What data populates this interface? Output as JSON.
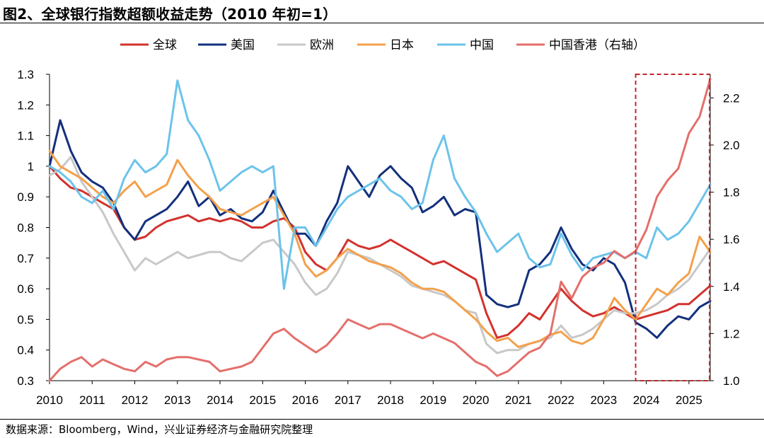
{
  "figure": {
    "title": "图2、全球银行指数超额收益走势（2010 年初=1）",
    "source": "数据来源：Bloomberg，Wind，兴业证券经济与金融研究院整理"
  },
  "chart_data": {
    "type": "line",
    "title": "图2、全球银行指数超额收益走势（2010 年初=1）",
    "xlabel": "",
    "ylabel": "",
    "x_range": [
      2010.0,
      2025.5
    ],
    "x_ticks": [
      "2010",
      "2011",
      "2012",
      "2013",
      "2014",
      "2015",
      "2016",
      "2017",
      "2018",
      "2019",
      "2020",
      "2021",
      "2022",
      "2023",
      "2024",
      "2025"
    ],
    "y_left": {
      "range": [
        0.3,
        1.3
      ],
      "ticks": [
        "1.3",
        "1.2",
        "1.1",
        "1",
        "0.9",
        "0.8",
        "0.7",
        "0.6",
        "0.5",
        "0.4",
        "0.3"
      ]
    },
    "y_right": {
      "range": [
        1.0,
        2.3
      ],
      "ticks": [
        "2.2",
        "2.0",
        "1.8",
        "1.6",
        "1.4",
        "1.2",
        "1.0"
      ]
    },
    "legend_position": "top-center",
    "highlight_box": {
      "x_from": 2023.75,
      "x_to": 2025.5,
      "style": "dashed",
      "color": "#C0282B"
    },
    "series": [
      {
        "name": "全球",
        "color": "#D2322D",
        "axis": "left",
        "x": [
          2010.0,
          2010.25,
          2010.5,
          2010.75,
          2011.0,
          2011.25,
          2011.5,
          2011.75,
          2012.0,
          2012.25,
          2012.5,
          2012.75,
          2013.0,
          2013.25,
          2013.5,
          2013.75,
          2014.0,
          2014.25,
          2014.5,
          2014.75,
          2015.0,
          2015.25,
          2015.5,
          2015.75,
          2016.0,
          2016.25,
          2016.5,
          2016.75,
          2017.0,
          2017.25,
          2017.5,
          2017.75,
          2018.0,
          2018.25,
          2018.5,
          2018.75,
          2019.0,
          2019.25,
          2019.5,
          2019.75,
          2020.0,
          2020.25,
          2020.5,
          2020.75,
          2021.0,
          2021.25,
          2021.5,
          2021.75,
          2022.0,
          2022.25,
          2022.5,
          2022.75,
          2023.0,
          2023.25,
          2023.5,
          2023.75,
          2024.0,
          2024.25,
          2024.5,
          2024.75,
          2025.0,
          2025.25,
          2025.5
        ],
        "values": [
          1.0,
          0.96,
          0.93,
          0.92,
          0.9,
          0.88,
          0.86,
          0.8,
          0.76,
          0.77,
          0.8,
          0.82,
          0.83,
          0.84,
          0.82,
          0.83,
          0.82,
          0.83,
          0.82,
          0.8,
          0.8,
          0.82,
          0.83,
          0.8,
          0.72,
          0.68,
          0.66,
          0.7,
          0.76,
          0.74,
          0.73,
          0.74,
          0.76,
          0.74,
          0.72,
          0.7,
          0.68,
          0.69,
          0.67,
          0.65,
          0.63,
          0.52,
          0.44,
          0.45,
          0.48,
          0.52,
          0.5,
          0.55,
          0.6,
          0.56,
          0.53,
          0.51,
          0.52,
          0.54,
          0.52,
          0.5,
          0.51,
          0.52,
          0.53,
          0.55,
          0.55,
          0.58,
          0.61
        ]
      },
      {
        "name": "美国",
        "color": "#13307D",
        "axis": "left",
        "x": [
          2010.0,
          2010.25,
          2010.5,
          2010.75,
          2011.0,
          2011.25,
          2011.5,
          2011.75,
          2012.0,
          2012.25,
          2012.5,
          2012.75,
          2013.0,
          2013.25,
          2013.5,
          2013.75,
          2014.0,
          2014.25,
          2014.5,
          2014.75,
          2015.0,
          2015.25,
          2015.5,
          2015.75,
          2016.0,
          2016.25,
          2016.5,
          2016.75,
          2017.0,
          2017.25,
          2017.5,
          2017.75,
          2018.0,
          2018.25,
          2018.5,
          2018.75,
          2019.0,
          2019.25,
          2019.5,
          2019.75,
          2020.0,
          2020.25,
          2020.5,
          2020.75,
          2021.0,
          2021.25,
          2021.5,
          2021.75,
          2022.0,
          2022.25,
          2022.5,
          2022.75,
          2023.0,
          2023.25,
          2023.5,
          2023.75,
          2024.0,
          2024.25,
          2024.5,
          2024.75,
          2025.0,
          2025.25,
          2025.5
        ],
        "values": [
          1.0,
          1.15,
          1.05,
          0.98,
          0.95,
          0.93,
          0.88,
          0.8,
          0.76,
          0.82,
          0.84,
          0.86,
          0.9,
          0.95,
          0.87,
          0.9,
          0.84,
          0.86,
          0.83,
          0.82,
          0.85,
          0.92,
          0.85,
          0.78,
          0.78,
          0.74,
          0.82,
          0.88,
          1.0,
          0.95,
          0.9,
          0.97,
          1.0,
          0.96,
          0.93,
          0.85,
          0.87,
          0.9,
          0.84,
          0.86,
          0.85,
          0.58,
          0.55,
          0.54,
          0.55,
          0.66,
          0.68,
          0.72,
          0.8,
          0.73,
          0.68,
          0.66,
          0.7,
          0.68,
          0.62,
          0.49,
          0.47,
          0.44,
          0.48,
          0.51,
          0.5,
          0.54,
          0.56
        ]
      },
      {
        "name": "欧洲",
        "color": "#C8C8C8",
        "axis": "left",
        "x": [
          2010.0,
          2010.25,
          2010.5,
          2010.75,
          2011.0,
          2011.25,
          2011.5,
          2011.75,
          2012.0,
          2012.25,
          2012.5,
          2012.75,
          2013.0,
          2013.25,
          2013.5,
          2013.75,
          2014.0,
          2014.25,
          2014.5,
          2014.75,
          2015.0,
          2015.25,
          2015.5,
          2015.75,
          2016.0,
          2016.25,
          2016.5,
          2016.75,
          2017.0,
          2017.25,
          2017.5,
          2017.75,
          2018.0,
          2018.25,
          2018.5,
          2018.75,
          2019.0,
          2019.25,
          2019.5,
          2019.75,
          2020.0,
          2020.25,
          2020.5,
          2020.75,
          2021.0,
          2021.25,
          2021.5,
          2021.75,
          2022.0,
          2022.25,
          2022.5,
          2022.75,
          2023.0,
          2023.25,
          2023.5,
          2023.75,
          2024.0,
          2024.25,
          2024.5,
          2024.75,
          2025.0,
          2025.25,
          2025.5
        ],
        "values": [
          0.97,
          0.99,
          1.03,
          0.95,
          0.9,
          0.85,
          0.78,
          0.72,
          0.66,
          0.7,
          0.68,
          0.7,
          0.72,
          0.7,
          0.71,
          0.72,
          0.72,
          0.7,
          0.69,
          0.72,
          0.75,
          0.76,
          0.72,
          0.68,
          0.62,
          0.58,
          0.6,
          0.65,
          0.72,
          0.71,
          0.7,
          0.68,
          0.66,
          0.64,
          0.61,
          0.6,
          0.59,
          0.58,
          0.56,
          0.53,
          0.52,
          0.42,
          0.39,
          0.4,
          0.4,
          0.42,
          0.43,
          0.44,
          0.48,
          0.44,
          0.45,
          0.47,
          0.5,
          0.53,
          0.52,
          0.52,
          0.53,
          0.55,
          0.58,
          0.6,
          0.63,
          0.68,
          0.73
        ]
      },
      {
        "name": "日本",
        "color": "#F4A04B",
        "axis": "left",
        "x": [
          2010.0,
          2010.25,
          2010.5,
          2010.75,
          2011.0,
          2011.25,
          2011.5,
          2011.75,
          2012.0,
          2012.25,
          2012.5,
          2012.75,
          2013.0,
          2013.25,
          2013.5,
          2013.75,
          2014.0,
          2014.25,
          2014.5,
          2014.75,
          2015.0,
          2015.25,
          2015.5,
          2015.75,
          2016.0,
          2016.25,
          2016.5,
          2016.75,
          2017.0,
          2017.25,
          2017.5,
          2017.75,
          2018.0,
          2018.25,
          2018.5,
          2018.75,
          2019.0,
          2019.25,
          2019.5,
          2019.75,
          2020.0,
          2020.25,
          2020.5,
          2020.75,
          2021.0,
          2021.25,
          2021.5,
          2021.75,
          2022.0,
          2022.25,
          2022.5,
          2022.75,
          2023.0,
          2023.25,
          2023.5,
          2023.75,
          2024.0,
          2024.25,
          2024.5,
          2024.75,
          2025.0,
          2025.25,
          2025.5
        ],
        "values": [
          1.05,
          1.0,
          0.98,
          0.96,
          0.93,
          0.9,
          0.88,
          0.92,
          0.95,
          0.9,
          0.92,
          0.94,
          1.02,
          0.97,
          0.93,
          0.9,
          0.86,
          0.85,
          0.84,
          0.86,
          0.88,
          0.9,
          0.84,
          0.78,
          0.68,
          0.64,
          0.66,
          0.7,
          0.73,
          0.71,
          0.69,
          0.68,
          0.67,
          0.65,
          0.62,
          0.6,
          0.6,
          0.59,
          0.56,
          0.53,
          0.5,
          0.46,
          0.43,
          0.44,
          0.41,
          0.42,
          0.43,
          0.45,
          0.46,
          0.43,
          0.42,
          0.44,
          0.5,
          0.57,
          0.53,
          0.5,
          0.55,
          0.6,
          0.58,
          0.62,
          0.65,
          0.77,
          0.72
        ]
      },
      {
        "name": "中国",
        "color": "#6CC3EA",
        "axis": "left",
        "x": [
          2010.0,
          2010.25,
          2010.5,
          2010.75,
          2011.0,
          2011.25,
          2011.5,
          2011.75,
          2012.0,
          2012.25,
          2012.5,
          2012.75,
          2013.0,
          2013.25,
          2013.5,
          2013.75,
          2014.0,
          2014.25,
          2014.5,
          2014.75,
          2015.0,
          2015.25,
          2015.5,
          2015.75,
          2016.0,
          2016.25,
          2016.5,
          2016.75,
          2017.0,
          2017.25,
          2017.5,
          2017.75,
          2018.0,
          2018.25,
          2018.5,
          2018.75,
          2019.0,
          2019.25,
          2019.5,
          2019.75,
          2020.0,
          2020.25,
          2020.5,
          2020.75,
          2021.0,
          2021.25,
          2021.5,
          2021.75,
          2022.0,
          2022.25,
          2022.5,
          2022.75,
          2023.0,
          2023.25,
          2023.5,
          2023.75,
          2024.0,
          2024.25,
          2024.5,
          2024.75,
          2025.0,
          2025.25,
          2025.5
        ],
        "values": [
          1.0,
          0.98,
          0.95,
          0.9,
          0.88,
          0.92,
          0.86,
          0.96,
          1.02,
          0.98,
          1.0,
          1.04,
          1.28,
          1.15,
          1.1,
          1.02,
          0.92,
          0.95,
          0.98,
          1.0,
          0.98,
          1.0,
          0.6,
          0.8,
          0.8,
          0.74,
          0.8,
          0.86,
          0.9,
          0.92,
          0.94,
          0.96,
          0.92,
          0.9,
          0.86,
          0.88,
          1.02,
          1.1,
          0.96,
          0.9,
          0.85,
          0.78,
          0.72,
          0.75,
          0.78,
          0.7,
          0.67,
          0.68,
          0.78,
          0.71,
          0.66,
          0.7,
          0.71,
          0.72,
          0.7,
          0.72,
          0.7,
          0.8,
          0.76,
          0.78,
          0.82,
          0.88,
          0.94
        ]
      },
      {
        "name": "中国香港（右轴）",
        "color": "#E46F6B",
        "axis": "right",
        "x": [
          2010.0,
          2010.25,
          2010.5,
          2010.75,
          2011.0,
          2011.25,
          2011.5,
          2011.75,
          2012.0,
          2012.25,
          2012.5,
          2012.75,
          2013.0,
          2013.25,
          2013.5,
          2013.75,
          2014.0,
          2014.25,
          2014.5,
          2014.75,
          2015.0,
          2015.25,
          2015.5,
          2015.75,
          2016.0,
          2016.25,
          2016.5,
          2016.75,
          2017.0,
          2017.25,
          2017.5,
          2017.75,
          2018.0,
          2018.25,
          2018.5,
          2018.75,
          2019.0,
          2019.25,
          2019.5,
          2019.75,
          2020.0,
          2020.25,
          2020.5,
          2020.75,
          2021.0,
          2021.25,
          2021.5,
          2021.75,
          2022.0,
          2022.25,
          2022.5,
          2022.75,
          2023.0,
          2023.25,
          2023.5,
          2023.75,
          2024.0,
          2024.25,
          2024.5,
          2024.75,
          2025.0,
          2025.25,
          2025.5
        ],
        "values": [
          1.0,
          1.05,
          1.08,
          1.1,
          1.06,
          1.09,
          1.07,
          1.05,
          1.04,
          1.08,
          1.06,
          1.09,
          1.1,
          1.1,
          1.09,
          1.08,
          1.04,
          1.05,
          1.06,
          1.08,
          1.14,
          1.2,
          1.22,
          1.18,
          1.15,
          1.12,
          1.15,
          1.2,
          1.26,
          1.24,
          1.22,
          1.24,
          1.24,
          1.22,
          1.2,
          1.18,
          1.2,
          1.18,
          1.16,
          1.12,
          1.08,
          1.06,
          1.02,
          1.04,
          1.08,
          1.12,
          1.14,
          1.2,
          1.42,
          1.35,
          1.44,
          1.48,
          1.5,
          1.55,
          1.52,
          1.55,
          1.64,
          1.78,
          1.85,
          1.9,
          2.05,
          2.12,
          2.28
        ]
      }
    ]
  }
}
